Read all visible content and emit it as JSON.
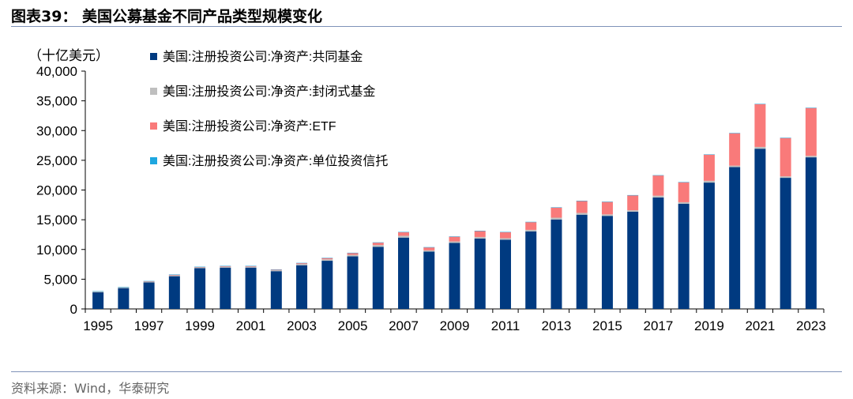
{
  "title": "图表39：  美国公募基金不同产品类型规模变化",
  "source": "资料来源：Wind，华泰研究",
  "chart_data": {
    "type": "bar",
    "stacked": true,
    "unit_label": "（十亿美元）",
    "ylim": [
      0,
      40000
    ],
    "yticks": [
      "0",
      "5,000",
      "10,000",
      "15,000",
      "20,000",
      "25,000",
      "30,000",
      "35,000",
      "40,000"
    ],
    "ytick_values": [
      0,
      5000,
      10000,
      15000,
      20000,
      25000,
      30000,
      35000,
      40000
    ],
    "categories": [
      "1995",
      "1996",
      "1997",
      "1998",
      "1999",
      "2000",
      "2001",
      "2002",
      "2003",
      "2004",
      "2005",
      "2006",
      "2007",
      "2008",
      "2009",
      "2010",
      "2011",
      "2012",
      "2013",
      "2014",
      "2015",
      "2016",
      "2017",
      "2018",
      "2019",
      "2020",
      "2021",
      "2022",
      "2023"
    ],
    "xtick_labels": [
      "1995",
      "1997",
      "1999",
      "2001",
      "2003",
      "2005",
      "2007",
      "2009",
      "2011",
      "2013",
      "2015",
      "2017",
      "2019",
      "2021",
      "2023"
    ],
    "legend_position": "top-left",
    "series": [
      {
        "name": "美国:注册投资公司:净资产:共同基金",
        "color": "#003a80",
        "values": [
          2800,
          3500,
          4450,
          5500,
          6850,
          6950,
          6950,
          6350,
          7350,
          8100,
          8850,
          10450,
          12000,
          9650,
          11100,
          11850,
          11650,
          13050,
          15050,
          15850,
          15650,
          16350,
          18750,
          17700,
          21250,
          23850,
          26950,
          22050,
          25500
        ]
      },
      {
        "name": "美国:注册投资公司:净资产:封闭式基金",
        "color": "#bfbfbf",
        "values": [
          150,
          150,
          150,
          150,
          150,
          150,
          150,
          150,
          200,
          250,
          250,
          300,
          300,
          200,
          250,
          250,
          250,
          250,
          300,
          300,
          250,
          250,
          300,
          250,
          300,
          250,
          300,
          250,
          250
        ]
      },
      {
        "name": "美国:注册投资公司:净资产:ETF",
        "color": "#f97a7a",
        "values": [
          0,
          0,
          50,
          100,
          50,
          100,
          100,
          100,
          150,
          200,
          300,
          400,
          600,
          500,
          800,
          1000,
          1000,
          1300,
          1700,
          2000,
          2100,
          2500,
          3400,
          3350,
          4400,
          5450,
          7200,
          6450,
          8050
        ]
      },
      {
        "name": "美国:注册投资公司:净资产:单位投资信托",
        "color": "#1ea7e0",
        "values": [
          50,
          50,
          50,
          50,
          50,
          50,
          50,
          50,
          50,
          50,
          50,
          50,
          50,
          50,
          50,
          50,
          50,
          50,
          50,
          50,
          50,
          50,
          50,
          50,
          50,
          50,
          50,
          50,
          50
        ]
      }
    ]
  }
}
